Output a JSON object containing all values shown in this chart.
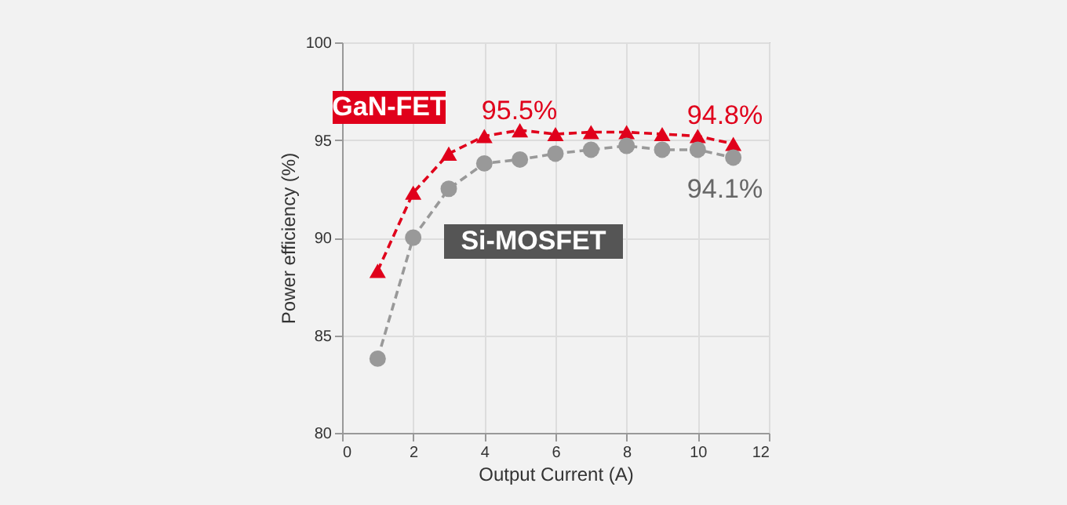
{
  "chart_data": {
    "type": "line",
    "xlabel": "Output Current (A)",
    "ylabel": "Power efficiency (%)",
    "x": [
      1,
      2,
      3,
      4,
      5,
      6,
      7,
      8,
      9,
      10,
      11
    ],
    "series": [
      {
        "name": "GaN-FET",
        "color": "#e0001b",
        "marker": "triangle",
        "values": [
          88.3,
          92.3,
          94.3,
          95.2,
          95.5,
          95.3,
          95.4,
          95.4,
          95.3,
          95.2,
          94.8
        ]
      },
      {
        "name": "Si-MOSFET",
        "color": "#999999",
        "marker": "circle",
        "values": [
          83.8,
          90.0,
          92.5,
          93.8,
          94.0,
          94.3,
          94.5,
          94.7,
          94.5,
          94.5,
          94.1
        ]
      }
    ],
    "annotations": [
      "95.5%",
      "94.8%",
      "94.1%"
    ],
    "xlim": [
      0,
      12
    ],
    "xticks": [
      0,
      2,
      4,
      6,
      8,
      10,
      12
    ],
    "ylim": [
      80,
      100
    ],
    "yticks": [
      80,
      85,
      90,
      95,
      100
    ],
    "grid": true,
    "line_style": "dashed"
  }
}
